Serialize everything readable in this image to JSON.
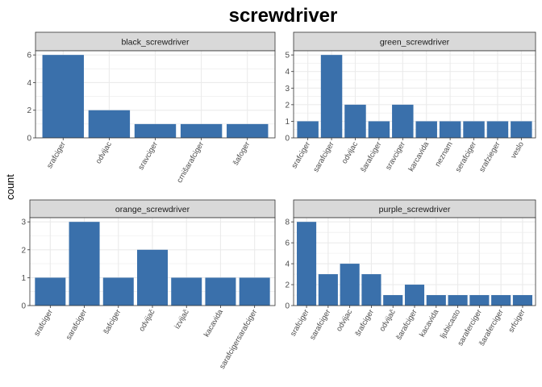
{
  "title": "screwdriver",
  "ylabel": "count",
  "colors": {
    "bar": "#3a70ab",
    "strip": "#d9d9d9",
    "grid": "#ebebeb",
    "border": "#333333"
  },
  "chart_data": [
    {
      "type": "bar",
      "title": "black_screwdriver",
      "categories": [
        "srafciger",
        "odvijac",
        "sravciger",
        "crnišarafciger",
        "šafoger"
      ],
      "values": [
        6,
        2,
        1,
        1,
        1
      ],
      "ylim": [
        0,
        6.3
      ],
      "yticks": [
        0,
        2,
        4,
        6
      ]
    },
    {
      "type": "bar",
      "title": "green_screwdriver",
      "categories": [
        "srafciger",
        "sarafciger",
        "odvijac",
        "šarafciger",
        "sravciger",
        "karcavida",
        "neznam",
        "serafciger",
        "srafzieger",
        "veslo"
      ],
      "values": [
        1,
        5,
        2,
        1,
        2,
        1,
        1,
        1,
        1,
        1
      ],
      "ylim": [
        0,
        5.25
      ],
      "yticks": [
        0,
        1,
        2,
        3,
        4,
        5
      ]
    },
    {
      "type": "bar",
      "title": "orange_screwdriver",
      "categories": [
        "srafciger",
        "sarafciger",
        "šafciger",
        "odvijač",
        "izvijač",
        "kacavida",
        "sarafcigersarafciger"
      ],
      "values": [
        1,
        3,
        1,
        2,
        1,
        1,
        1
      ],
      "ylim": [
        0,
        3.15
      ],
      "yticks": [
        0,
        1,
        2,
        3
      ]
    },
    {
      "type": "bar",
      "title": "purple_screwdriver",
      "categories": [
        "srafciger",
        "sarafciger",
        "odvijac",
        "šrafciger",
        "odvijač",
        "šarafciger",
        "kacavida",
        "ljubicasto",
        "saraferciger",
        "šaraferciger",
        "srfciger"
      ],
      "values": [
        8,
        3,
        4,
        3,
        1,
        2,
        1,
        1,
        1,
        1,
        1
      ],
      "ylim": [
        0,
        8.4
      ],
      "yticks": [
        0,
        2,
        4,
        6,
        8
      ]
    }
  ]
}
